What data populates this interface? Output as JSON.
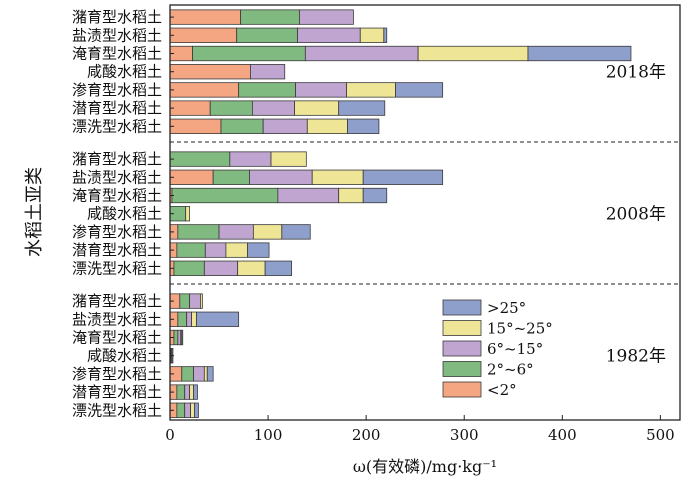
{
  "chart_data": {
    "type": "bar",
    "orientation": "horizontal",
    "stacked": true,
    "xlabel": "ω(有效磷)/mg·kg⁻¹",
    "ylabel": "水稻土亚类",
    "xlim": [
      0,
      520
    ],
    "xticks": [
      0,
      100,
      200,
      300,
      400,
      500
    ],
    "series": [
      {
        "name": "<2°",
        "color": "#F4A582"
      },
      {
        "name": "2°~6°",
        "color": "#80BA80"
      },
      {
        "name": "6°~15°",
        "color": "#BFA5CF"
      },
      {
        "name": "15°~25°",
        "color": "#EEE696"
      },
      {
        "name": ">25°",
        "color": "#8F9FCC"
      }
    ],
    "legend_order": [
      4,
      3,
      2,
      1,
      0
    ],
    "legend_position": "inside-bottom-right",
    "groups": [
      {
        "year": "2018年",
        "rows": [
          {
            "category": "潴育型水稻土",
            "values": [
              72,
              60,
              55,
              0,
              0
            ]
          },
          {
            "category": "盐渍型水稻土",
            "values": [
              68,
              62,
              64,
              24,
              3
            ]
          },
          {
            "category": "淹育型水稻土",
            "values": [
              23,
              115,
              115,
              112,
              105
            ]
          },
          {
            "category": "咸酸水稻土",
            "values": [
              82,
              0,
              35,
              0,
              0
            ]
          },
          {
            "category": "渗育型水稻土",
            "values": [
              70,
              58,
              52,
              50,
              48
            ]
          },
          {
            "category": "潜育型水稻土",
            "values": [
              41,
              43,
              43,
              45,
              47
            ]
          },
          {
            "category": "漂洗型水稻土",
            "values": [
              52,
              43,
              45,
              41,
              32
            ]
          }
        ]
      },
      {
        "year": "2008年",
        "rows": [
          {
            "category": "潴育型水稻土",
            "values": [
              0,
              61,
              42,
              36,
              0
            ]
          },
          {
            "category": "盐渍型水稻土",
            "values": [
              44,
              37,
              64,
              52,
              81
            ]
          },
          {
            "category": "淹育型水稻土",
            "values": [
              2,
              108,
              62,
              25,
              24
            ]
          },
          {
            "category": "咸酸水稻土",
            "values": [
              0,
              16,
              0,
              4,
              0
            ]
          },
          {
            "category": "渗育型水稻土",
            "values": [
              8,
              42,
              35,
              29,
              29
            ]
          },
          {
            "category": "潜育型水稻土",
            "values": [
              7,
              29,
              21,
              22,
              22
            ]
          },
          {
            "category": "漂洗型水稻土",
            "values": [
              4,
              31,
              34,
              28,
              27
            ]
          }
        ]
      },
      {
        "year": "1982年",
        "rows": [
          {
            "category": "潴育型水稻土",
            "values": [
              10,
              10,
              11,
              2,
              0
            ]
          },
          {
            "category": "盐渍型水稻土",
            "values": [
              8,
              9,
              5,
              5,
              43
            ]
          },
          {
            "category": "淹育型水稻土",
            "values": [
              4,
              4,
              3,
              1,
              1
            ]
          },
          {
            "category": "咸酸水稻土",
            "values": [
              1,
              1,
              1,
              0,
              0
            ]
          },
          {
            "category": "渗育型水稻土",
            "values": [
              12,
              12,
              11,
              3,
              6
            ]
          },
          {
            "category": "潜育型水稻土",
            "values": [
              7,
              8,
              5,
              4,
              4
            ]
          },
          {
            "category": "漂洗型水稻土",
            "values": [
              7,
              8,
              6,
              4,
              4
            ]
          }
        ]
      }
    ]
  }
}
